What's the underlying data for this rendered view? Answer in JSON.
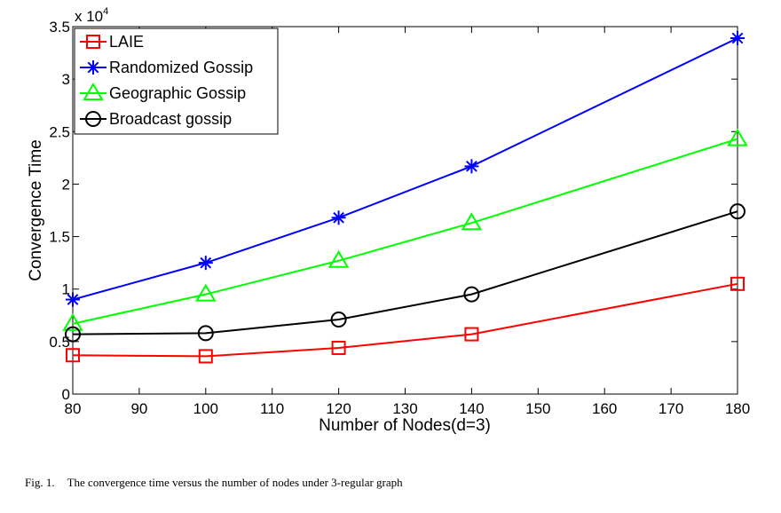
{
  "chart_data": {
    "type": "line",
    "xlabel": "Number of Nodes(d=3)",
    "ylabel": "Convergence Time",
    "x_ticks": [
      "80",
      "90",
      "100",
      "110",
      "120",
      "130",
      "140",
      "150",
      "160",
      "170",
      "180"
    ],
    "y_ticks": [
      "0",
      "0.5",
      "1",
      "1.5",
      "2",
      "2.5",
      "3",
      "3.5"
    ],
    "y_exponent": {
      "base": "x 10",
      "power": "4"
    },
    "xlim": [
      80,
      180
    ],
    "ylim": [
      0,
      3.5
    ],
    "x": [
      80,
      100,
      120,
      140,
      180
    ],
    "series": [
      {
        "name": "LAIE",
        "values": [
          0.37,
          0.36,
          0.44,
          0.57,
          1.05
        ],
        "color": "#ff0000",
        "marker": "square"
      },
      {
        "name": "Randomized Gossip",
        "values": [
          0.9,
          1.25,
          1.68,
          2.17,
          3.39
        ],
        "color": "#0000ff",
        "marker": "asterisk"
      },
      {
        "name": "Geographic Gossip",
        "values": [
          0.67,
          0.95,
          1.27,
          1.63,
          2.43
        ],
        "color": "#00ff00",
        "marker": "triangle"
      },
      {
        "name": "Broadcast gossip",
        "values": [
          0.57,
          0.58,
          0.71,
          0.95,
          1.74
        ],
        "color": "#000000",
        "marker": "circle"
      }
    ],
    "legend": "top-left"
  },
  "caption": {
    "label": "Fig. 1.",
    "text": "The convergence time versus the number of nodes under 3-regular graph"
  }
}
